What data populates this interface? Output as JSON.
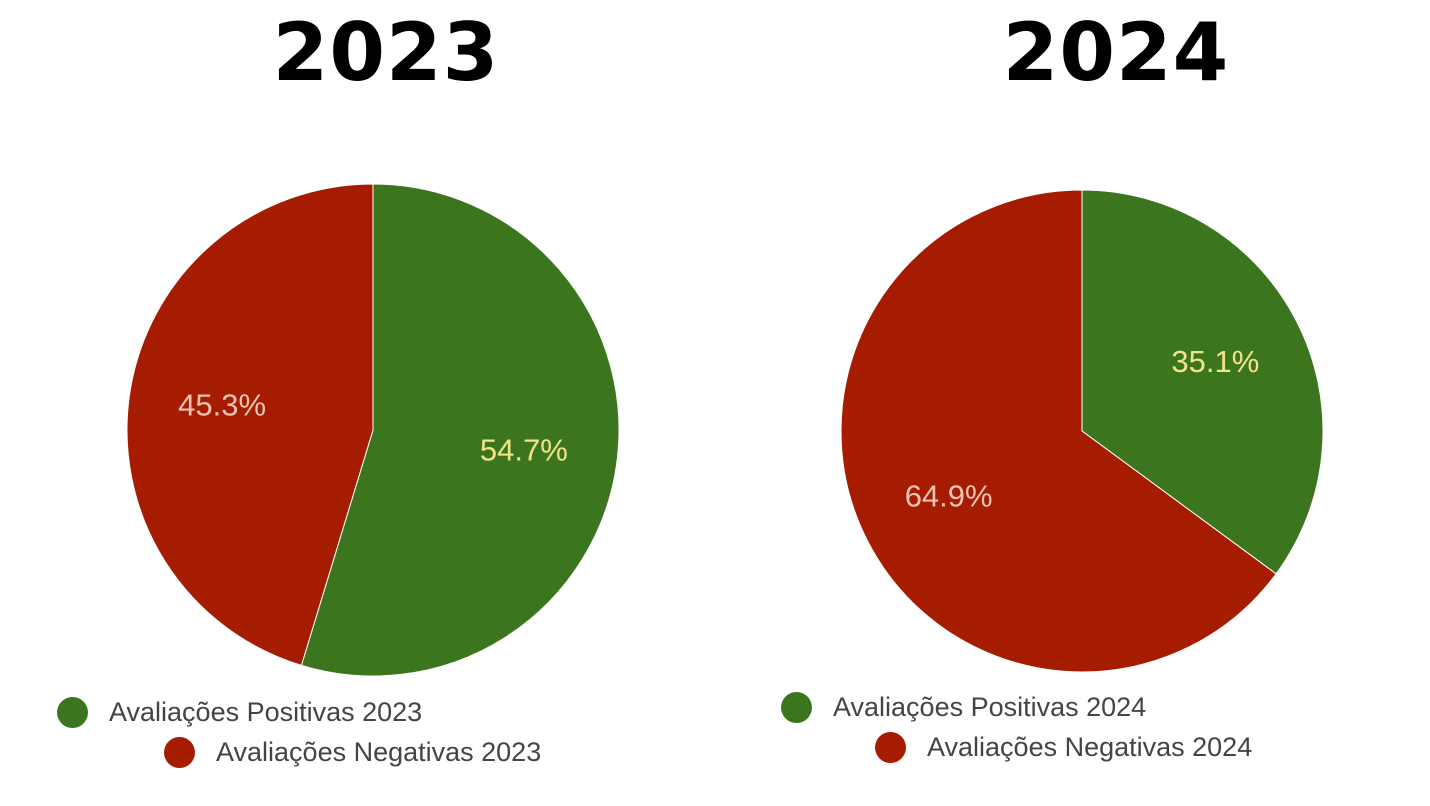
{
  "chart_data": [
    {
      "type": "pie",
      "title": "2023",
      "series": [
        {
          "name": "Avaliações Positivas 2023",
          "value": 54.7,
          "label": "54.7%",
          "color": "#3b761f",
          "label_color": "#f2e38a"
        },
        {
          "name": "Avaliações Negativas 2023",
          "value": 45.3,
          "label": "45.3%",
          "color": "#a61c00",
          "label_color": "#f0c4b4"
        }
      ],
      "legend_position": "bottom",
      "start_angle": "top, clockwise"
    },
    {
      "type": "pie",
      "title": "2024",
      "series": [
        {
          "name": "Avaliações Positivas 2024",
          "value": 35.1,
          "label": "35.1%",
          "color": "#3b761f",
          "label_color": "#f2e38a"
        },
        {
          "name": "Avaliações Negativas 2024",
          "value": 64.9,
          "label": "64.9%",
          "color": "#a61c00",
          "label_color": "#f0c4b4"
        }
      ],
      "legend_position": "bottom",
      "start_angle": "top, clockwise"
    }
  ]
}
